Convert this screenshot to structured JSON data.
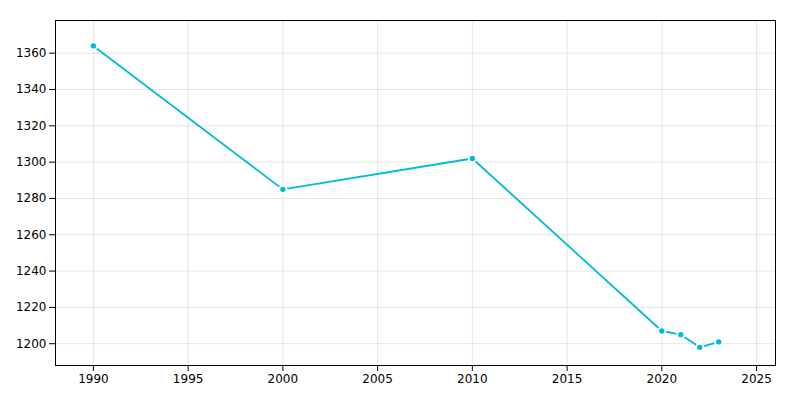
{
  "chart_data": {
    "type": "line",
    "x": [
      1990,
      2000,
      2010,
      2020,
      2021,
      2022,
      2023
    ],
    "values": [
      1364,
      1285,
      1302,
      1207,
      1205,
      1198,
      1201
    ],
    "color": "#00BCD4",
    "marker": "circle",
    "xlim": [
      1988,
      2026
    ],
    "ylim": [
      1188,
      1378
    ],
    "xticks": [
      1990,
      1995,
      2000,
      2005,
      2010,
      2015,
      2020,
      2025
    ],
    "yticks": [
      1200,
      1220,
      1240,
      1260,
      1280,
      1300,
      1320,
      1340,
      1360
    ],
    "grid": true
  }
}
